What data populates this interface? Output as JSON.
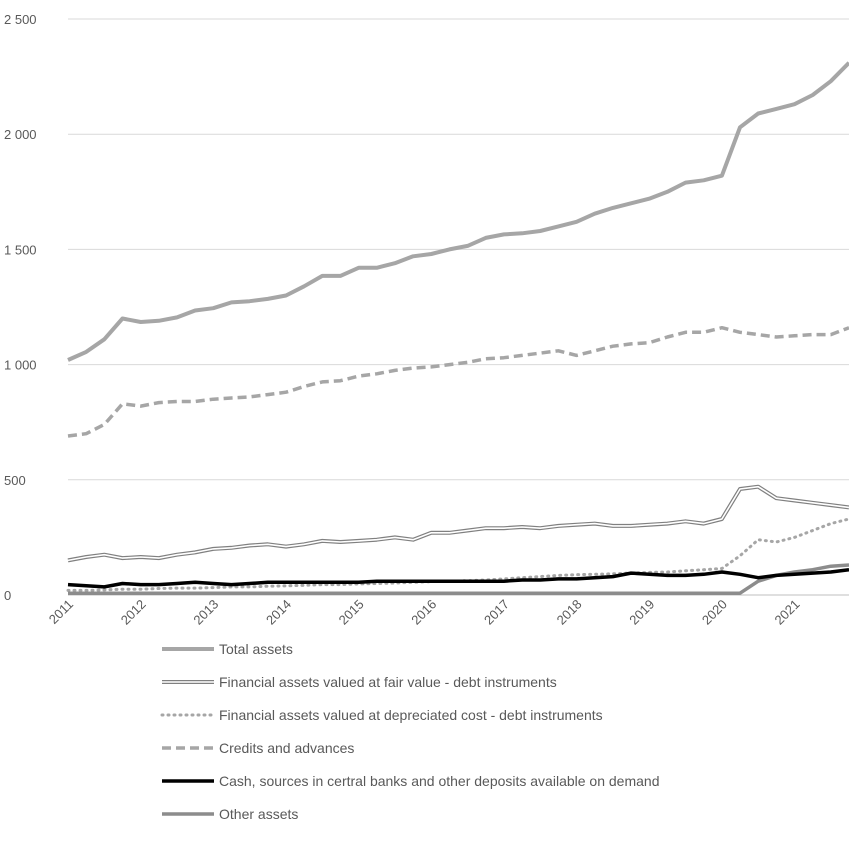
{
  "chart_data": {
    "type": "line",
    "title": "",
    "xlabel": "",
    "ylabel": "",
    "ylim": [
      0,
      2500
    ],
    "y_ticks": [
      "0",
      "500",
      "1 000",
      "1 500",
      "2 000",
      "2 500"
    ],
    "y_tick_values": [
      0,
      500,
      1000,
      1500,
      2000,
      2500
    ],
    "x_ticks": [
      "2011",
      "2012",
      "2013",
      "2014",
      "2015",
      "2016",
      "2017",
      "2018",
      "2019",
      "2020",
      "2021"
    ],
    "x_range": [
      2011.0,
      2021.75
    ],
    "grid": "horizontal",
    "legend_position": "bottom",
    "x": [
      2011.0,
      2011.25,
      2011.5,
      2011.75,
      2012.0,
      2012.25,
      2012.5,
      2012.75,
      2013.0,
      2013.25,
      2013.5,
      2013.75,
      2014.0,
      2014.25,
      2014.5,
      2014.75,
      2015.0,
      2015.25,
      2015.5,
      2015.75,
      2016.0,
      2016.25,
      2016.5,
      2016.75,
      2017.0,
      2017.25,
      2017.5,
      2017.75,
      2018.0,
      2018.25,
      2018.5,
      2018.75,
      2019.0,
      2019.25,
      2019.5,
      2019.75,
      2020.0,
      2020.25,
      2020.5,
      2020.75,
      2021.0,
      2021.25,
      2021.5,
      2021.75
    ],
    "series": [
      {
        "name": "Total assets",
        "color": "#a6a6a6",
        "style": "solid-thick",
        "values": [
          1020,
          1055,
          1110,
          1200,
          1185,
          1190,
          1205,
          1235,
          1245,
          1270,
          1275,
          1285,
          1300,
          1340,
          1385,
          1385,
          1420,
          1420,
          1440,
          1470,
          1480,
          1500,
          1515,
          1550,
          1565,
          1570,
          1580,
          1600,
          1620,
          1655,
          1680,
          1700,
          1720,
          1750,
          1790,
          1800,
          1820,
          2030,
          2090,
          2110,
          2130,
          2170,
          2230,
          2310
        ]
      },
      {
        "name": "Financial assets valued at fair value - debt instruments",
        "color": "#808080",
        "style": "double",
        "values": [
          150,
          165,
          175,
          160,
          165,
          160,
          175,
          185,
          200,
          205,
          215,
          220,
          210,
          220,
          235,
          230,
          235,
          240,
          250,
          240,
          270,
          270,
          280,
          290,
          290,
          295,
          290,
          300,
          305,
          310,
          300,
          300,
          305,
          310,
          320,
          310,
          330,
          460,
          470,
          420,
          410,
          400,
          390,
          380
        ]
      },
      {
        "name": "Financial assets valued at depreciated cost - debt instruments",
        "color": "#a6a6a6",
        "style": "dotted",
        "values": [
          20,
          20,
          22,
          25,
          25,
          28,
          30,
          30,
          32,
          35,
          35,
          38,
          40,
          42,
          45,
          45,
          48,
          50,
          52,
          55,
          58,
          60,
          62,
          65,
          70,
          75,
          80,
          85,
          88,
          90,
          92,
          95,
          98,
          100,
          105,
          110,
          115,
          170,
          240,
          230,
          250,
          280,
          310,
          330
        ]
      },
      {
        "name": "Credits and advances",
        "color": "#a6a6a6",
        "style": "dashed",
        "values": [
          690,
          700,
          740,
          830,
          820,
          835,
          840,
          840,
          850,
          855,
          860,
          870,
          880,
          905,
          925,
          930,
          950,
          960,
          975,
          985,
          990,
          1000,
          1010,
          1025,
          1030,
          1040,
          1050,
          1060,
          1040,
          1060,
          1080,
          1090,
          1095,
          1120,
          1140,
          1140,
          1160,
          1140,
          1130,
          1120,
          1125,
          1130,
          1130,
          1160
        ]
      },
      {
        "name": "Cash, sources in certral banks and other deposits available on demand",
        "color": "#000000",
        "style": "solid-black",
        "values": [
          45,
          40,
          35,
          50,
          45,
          45,
          50,
          55,
          50,
          45,
          50,
          55,
          55,
          55,
          55,
          55,
          55,
          60,
          60,
          60,
          60,
          60,
          60,
          60,
          60,
          65,
          65,
          70,
          70,
          75,
          80,
          95,
          90,
          85,
          85,
          90,
          100,
          90,
          75,
          85,
          90,
          95,
          100,
          110
        ]
      },
      {
        "name": "Other assets",
        "color": "#8c8c8c",
        "style": "solid-medium",
        "values": [
          8,
          8,
          8,
          8,
          8,
          8,
          8,
          8,
          8,
          8,
          8,
          8,
          8,
          8,
          8,
          8,
          8,
          8,
          8,
          8,
          8,
          8,
          8,
          8,
          8,
          8,
          8,
          8,
          8,
          8,
          8,
          8,
          8,
          8,
          8,
          8,
          8,
          8,
          60,
          85,
          100,
          110,
          125,
          130
        ]
      }
    ]
  }
}
